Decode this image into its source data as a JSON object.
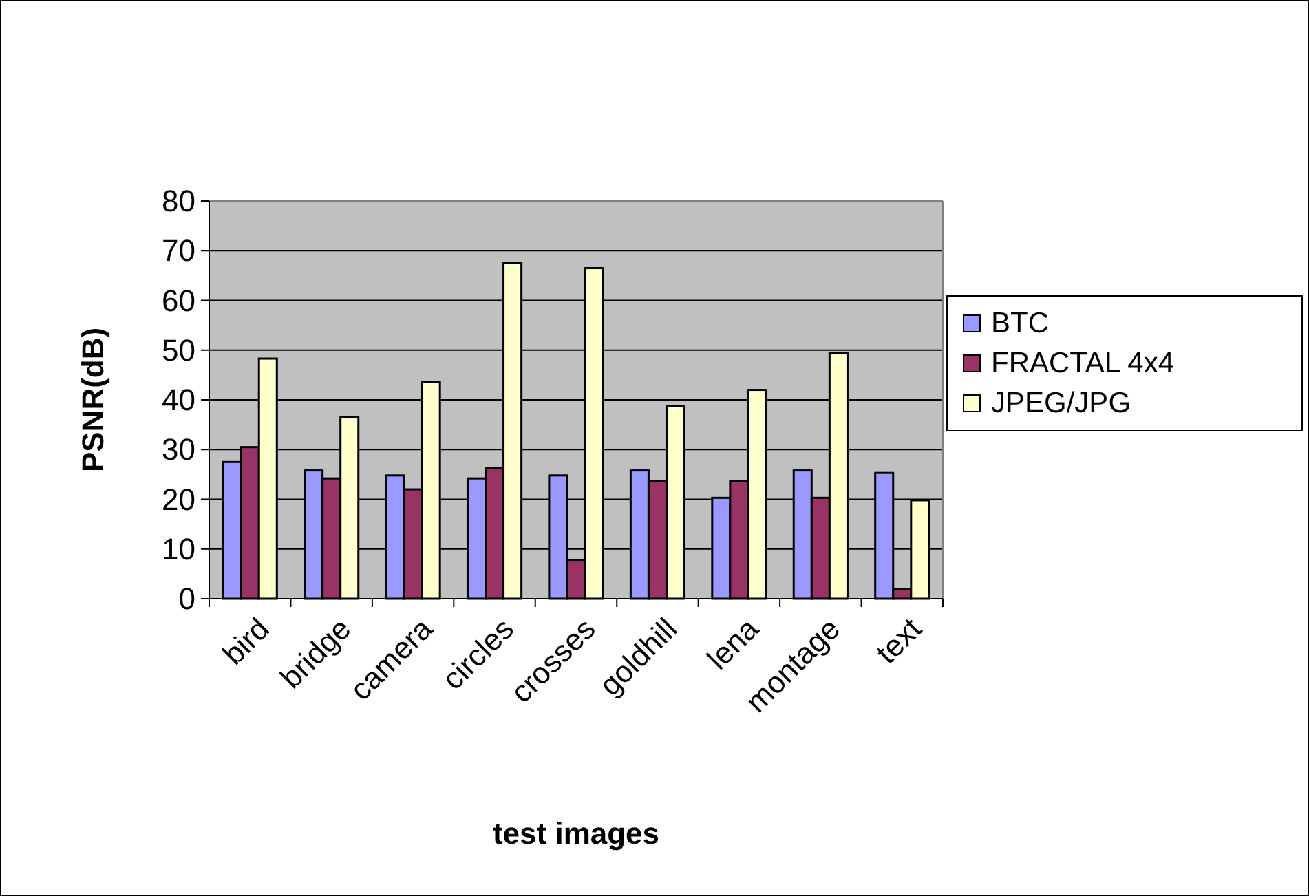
{
  "chart_data": {
    "type": "bar",
    "xlabel": "test images",
    "ylabel": "PSNR(dB)",
    "categories": [
      "bird",
      "bridge",
      "camera",
      "circles",
      "crosses",
      "goldhill",
      "lena",
      "montage",
      "text"
    ],
    "series": [
      {
        "name": "BTC",
        "color": "#9999ff",
        "values": [
          27.5,
          25.8,
          24.8,
          24.2,
          24.8,
          25.8,
          20.3,
          25.8,
          25.3
        ]
      },
      {
        "name": "FRACTAL 4x4",
        "color": "#993366",
        "values": [
          30.5,
          24.2,
          22,
          26.3,
          7.8,
          23.6,
          23.6,
          20.3,
          2
        ]
      },
      {
        "name": "JPEG/JPG",
        "color": "#ffffcc",
        "values": [
          48.3,
          36.6,
          43.6,
          67.6,
          66.5,
          38.8,
          42,
          49.4,
          19.8
        ]
      }
    ],
    "ylim": [
      0,
      80
    ],
    "yticks": [
      0,
      10,
      20,
      30,
      40,
      50,
      60,
      70,
      80
    ],
    "grid": "y",
    "legend": "right"
  }
}
